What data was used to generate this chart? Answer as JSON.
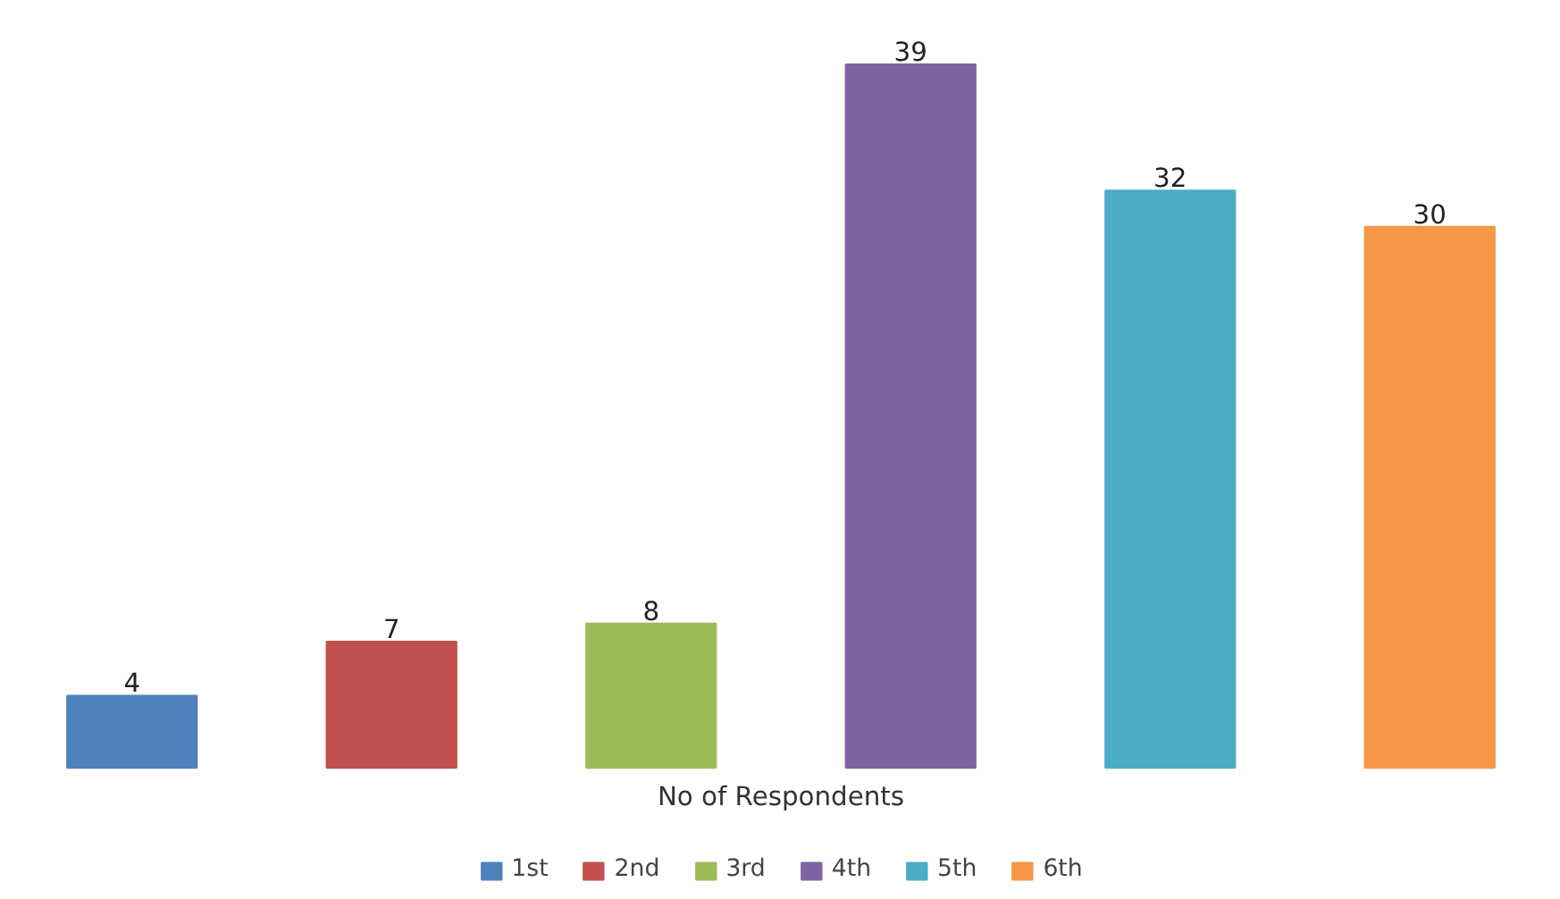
{
  "chart_data": {
    "type": "bar",
    "stacked": true,
    "xlabel": "No of Respondents",
    "categories": [
      null,
      null,
      null,
      null,
      null,
      null
    ],
    "series": [
      {
        "name": "1st",
        "color": "#4f81bd",
        "values": [
          4,
          null,
          null,
          null,
          null,
          null
        ]
      },
      {
        "name": "2nd",
        "color": "#c0504d",
        "values": [
          null,
          7,
          null,
          null,
          null,
          null
        ]
      },
      {
        "name": "3rd",
        "color": "#9bbb59",
        "values": [
          null,
          null,
          8,
          null,
          null,
          null
        ]
      },
      {
        "name": "4th",
        "color": "#8064a2",
        "values": [
          null,
          null,
          null,
          39,
          null,
          null
        ]
      },
      {
        "name": "5th",
        "color": "#4bacc6",
        "values": [
          null,
          null,
          null,
          null,
          32,
          null
        ]
      },
      {
        "name": "6th",
        "color": "#f79646",
        "values": [
          null,
          null,
          null,
          null,
          null,
          30
        ]
      }
    ],
    "data_labels": true,
    "legend": "bottom"
  }
}
